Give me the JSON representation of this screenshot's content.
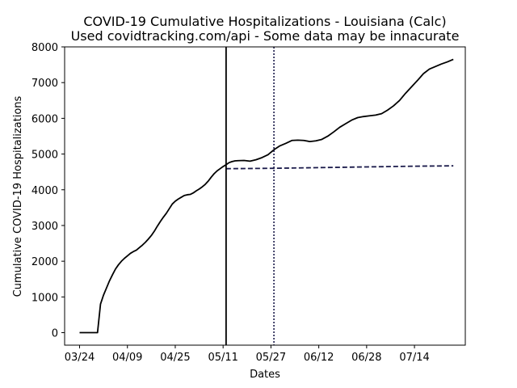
{
  "chart_data": {
    "type": "line",
    "title": "COVID-19 Cumulative Hospitalizations - Louisiana (Calc)",
    "subtitle": "Used covidtracking.com/api - Some data may be innacurate",
    "xlabel": "Dates",
    "ylabel": "Cumulative COVID-19 Hospitalizations",
    "xlim": [
      "2020-03-19",
      "2020-07-31"
    ],
    "ylim": [
      -350,
      8000
    ],
    "x_ticks": [
      "03/24",
      "04/09",
      "04/25",
      "05/11",
      "05/27",
      "06/12",
      "06/28",
      "07/14"
    ],
    "x_tick_dates": [
      "2020-03-24",
      "2020-04-09",
      "2020-04-25",
      "2020-05-11",
      "2020-05-27",
      "2020-06-12",
      "2020-06-28",
      "2020-07-14"
    ],
    "y_ticks": [
      0,
      1000,
      2000,
      3000,
      4000,
      5000,
      6000,
      7000,
      8000
    ],
    "grid": false,
    "series": [
      {
        "style": "solid",
        "color": "#000000",
        "x": [
          "2020-03-24",
          "2020-03-27",
          "2020-03-30",
          "2020-03-31",
          "2020-04-01",
          "2020-04-02",
          "2020-04-03",
          "2020-04-04",
          "2020-04-05",
          "2020-04-06",
          "2020-04-07",
          "2020-04-08",
          "2020-04-09",
          "2020-04-10",
          "2020-04-11",
          "2020-04-12",
          "2020-04-13",
          "2020-04-14",
          "2020-04-15",
          "2020-04-16",
          "2020-04-17",
          "2020-04-18",
          "2020-04-19",
          "2020-04-20",
          "2020-04-21",
          "2020-04-22",
          "2020-04-23",
          "2020-04-24",
          "2020-04-25",
          "2020-04-26",
          "2020-04-27",
          "2020-04-28",
          "2020-04-29",
          "2020-04-30",
          "2020-05-01",
          "2020-05-02",
          "2020-05-03",
          "2020-05-04",
          "2020-05-05",
          "2020-05-06",
          "2020-05-07",
          "2020-05-08",
          "2020-05-09",
          "2020-05-10",
          "2020-05-11",
          "2020-05-12",
          "2020-05-13",
          "2020-05-14",
          "2020-05-15",
          "2020-05-16",
          "2020-05-18",
          "2020-05-20",
          "2020-05-22",
          "2020-05-24",
          "2020-05-26",
          "2020-05-28",
          "2020-05-30",
          "2020-06-01",
          "2020-06-03",
          "2020-06-05",
          "2020-06-07",
          "2020-06-09",
          "2020-06-11",
          "2020-06-13",
          "2020-06-15",
          "2020-06-17",
          "2020-06-19",
          "2020-06-21",
          "2020-06-23",
          "2020-06-25",
          "2020-06-27",
          "2020-06-29",
          "2020-07-01",
          "2020-07-03",
          "2020-07-05",
          "2020-07-07",
          "2020-07-09",
          "2020-07-11",
          "2020-07-13",
          "2020-07-15",
          "2020-07-17",
          "2020-07-19",
          "2020-07-21",
          "2020-07-23",
          "2020-07-25",
          "2020-07-27"
        ],
        "values": [
          0,
          0,
          0,
          800,
          1050,
          1250,
          1450,
          1620,
          1780,
          1900,
          2000,
          2080,
          2150,
          2220,
          2270,
          2310,
          2380,
          2450,
          2530,
          2620,
          2720,
          2840,
          2980,
          3110,
          3230,
          3340,
          3470,
          3600,
          3680,
          3740,
          3790,
          3840,
          3860,
          3870,
          3910,
          3970,
          4020,
          4080,
          4150,
          4240,
          4350,
          4450,
          4530,
          4590,
          4650,
          4700,
          4760,
          4790,
          4810,
          4815,
          4820,
          4800,
          4840,
          4900,
          4980,
          5120,
          5230,
          5300,
          5380,
          5390,
          5380,
          5350,
          5370,
          5410,
          5500,
          5620,
          5750,
          5850,
          5950,
          6020,
          6050,
          6070,
          6090,
          6130,
          6230,
          6350,
          6500,
          6700,
          6880,
          7060,
          7250,
          7380,
          7450,
          7520,
          7580,
          7650
        ]
      },
      {
        "style": "dashed",
        "color": "#1a1a4a",
        "x": [
          "2020-05-12",
          "2020-05-27",
          "2020-06-12",
          "2020-06-28",
          "2020-07-14",
          "2020-07-27"
        ],
        "values": [
          4590,
          4600,
          4620,
          4640,
          4660,
          4670
        ]
      }
    ],
    "vlines": [
      {
        "x": "2020-05-12",
        "style": "solid",
        "color": "#000000"
      },
      {
        "x": "2020-05-28",
        "style": "dotted",
        "color": "#1a1a4a"
      }
    ]
  }
}
